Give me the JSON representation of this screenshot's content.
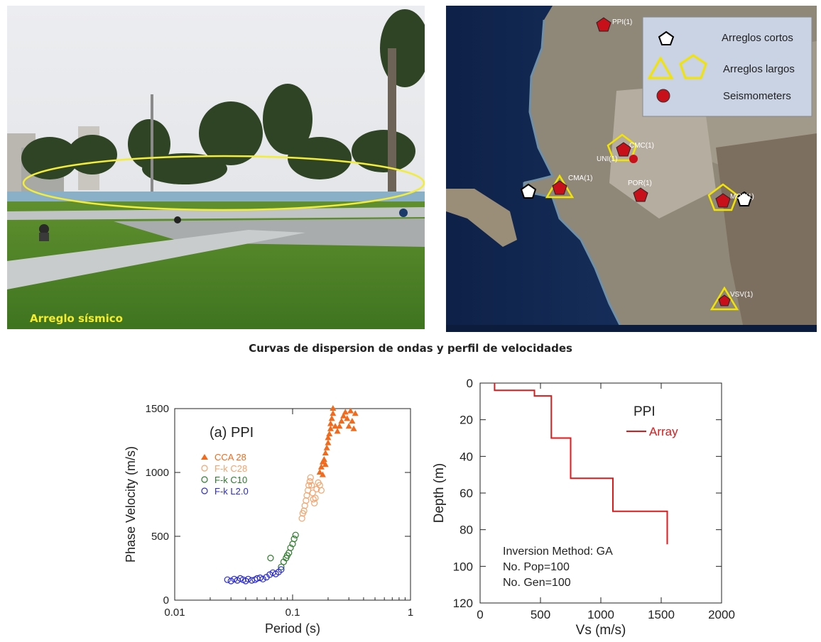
{
  "photo": {
    "caption": "Arreglo sísmico"
  },
  "map": {
    "legend": [
      {
        "label": "Arreglos cortos",
        "icon": "black-pentagon-icon"
      },
      {
        "label": "Arreglos largos",
        "icon": "yellow-triangle-pentagon-icon"
      },
      {
        "label": "Seismometers",
        "icon": "red-circle-icon"
      }
    ],
    "stations": [
      "PPI(1)",
      "CMC(1)",
      "UNI(1)",
      "CMA(1)",
      "POR(1)",
      "MOL(1)",
      "VSV(1)"
    ],
    "colors": {
      "long_array": "#f2e400",
      "seismometer": "#c8101a",
      "legend_bg": "#c9d3e4"
    }
  },
  "section_title": "Curvas de dispersion de ondas y perfil de velocidades",
  "chart_data": [
    {
      "type": "scatter",
      "title": "(a) PPI",
      "xlabel": "Period (s)",
      "ylabel": "Phase Velocity (m/s)",
      "xscale": "log",
      "xlim": [
        0.01,
        1
      ],
      "ylim": [
        0,
        1500
      ],
      "xticks": [
        {
          "v": 0.01,
          "label": "0.01"
        },
        {
          "v": 0.1,
          "label": "0.1"
        },
        {
          "v": 1,
          "label": "1"
        }
      ],
      "yticks": [
        {
          "v": 0,
          "label": "0"
        },
        {
          "v": 500,
          "label": "500"
        },
        {
          "v": 1000,
          "label": "1000"
        },
        {
          "v": 1500,
          "label": "1500"
        }
      ],
      "legend_position": "top-left",
      "series": [
        {
          "name": "CCA 28",
          "marker": "filled-triangle",
          "color": "#f26a1b",
          "points": [
            [
              0.17,
              1000
            ],
            [
              0.175,
              1040
            ],
            [
              0.18,
              980
            ],
            [
              0.18,
              1080
            ],
            [
              0.185,
              1100
            ],
            [
              0.19,
              1060
            ],
            [
              0.19,
              1150
            ],
            [
              0.195,
              1190
            ],
            [
              0.2,
              1230
            ],
            [
              0.2,
              1270
            ],
            [
              0.205,
              1300
            ],
            [
              0.21,
              1340
            ],
            [
              0.21,
              1380
            ],
            [
              0.215,
              1420
            ],
            [
              0.22,
              1460
            ],
            [
              0.22,
              1500
            ],
            [
              0.23,
              1360
            ],
            [
              0.24,
              1320
            ],
            [
              0.25,
              1360
            ],
            [
              0.26,
              1400
            ],
            [
              0.27,
              1440
            ],
            [
              0.28,
              1470
            ],
            [
              0.29,
              1420
            ],
            [
              0.3,
              1360
            ],
            [
              0.31,
              1480
            ],
            [
              0.32,
              1400
            ],
            [
              0.33,
              1340
            ],
            [
              0.34,
              1460
            ]
          ]
        },
        {
          "name": "F-k C28",
          "marker": "open-circle",
          "color": "#f5a36c",
          "points": [
            [
              0.12,
              640
            ],
            [
              0.122,
              680
            ],
            [
              0.125,
              700
            ],
            [
              0.127,
              740
            ],
            [
              0.13,
              780
            ],
            [
              0.132,
              820
            ],
            [
              0.135,
              860
            ],
            [
              0.137,
              900
            ],
            [
              0.14,
              930
            ],
            [
              0.142,
              960
            ],
            [
              0.145,
              900
            ],
            [
              0.148,
              840
            ],
            [
              0.15,
              790
            ],
            [
              0.153,
              760
            ],
            [
              0.156,
              800
            ],
            [
              0.16,
              870
            ],
            [
              0.165,
              920
            ],
            [
              0.17,
              900
            ],
            [
              0.175,
              860
            ]
          ]
        },
        {
          "name": "F-k C10",
          "marker": "open-circle",
          "color": "#2d7a2d",
          "points": [
            [
              0.065,
              330
            ],
            [
              0.08,
              260
            ],
            [
              0.084,
              300
            ],
            [
              0.088,
              330
            ],
            [
              0.09,
              350
            ],
            [
              0.093,
              370
            ],
            [
              0.096,
              410
            ],
            [
              0.1,
              440
            ],
            [
              0.103,
              480
            ],
            [
              0.106,
              510
            ]
          ]
        },
        {
          "name": "F-k L2.0",
          "marker": "open-circle",
          "color": "#2a2ad8",
          "points": [
            [
              0.028,
              160
            ],
            [
              0.03,
              150
            ],
            [
              0.032,
              165
            ],
            [
              0.034,
              155
            ],
            [
              0.036,
              170
            ],
            [
              0.038,
              160
            ],
            [
              0.04,
              150
            ],
            [
              0.042,
              165
            ],
            [
              0.045,
              155
            ],
            [
              0.048,
              160
            ],
            [
              0.05,
              170
            ],
            [
              0.053,
              175
            ],
            [
              0.056,
              165
            ],
            [
              0.06,
              180
            ],
            [
              0.064,
              200
            ],
            [
              0.068,
              215
            ],
            [
              0.072,
              205
            ],
            [
              0.076,
              220
            ],
            [
              0.08,
              240
            ]
          ]
        }
      ]
    },
    {
      "type": "line",
      "title": "PPI",
      "xlabel": "Vs (m/s)",
      "ylabel": "Depth (m)",
      "xlim": [
        0,
        2000
      ],
      "ylim": [
        0,
        120
      ],
      "y_inverted": true,
      "xticks": [
        {
          "v": 0,
          "label": "0"
        },
        {
          "v": 500,
          "label": "500"
        },
        {
          "v": 1000,
          "label": "1000"
        },
        {
          "v": 1500,
          "label": "1500"
        },
        {
          "v": 2000,
          "label": "2000"
        }
      ],
      "yticks": [
        {
          "v": 0,
          "label": "0"
        },
        {
          "v": 20,
          "label": "20"
        },
        {
          "v": 40,
          "label": "40"
        },
        {
          "v": 60,
          "label": "60"
        },
        {
          "v": 80,
          "label": "80"
        },
        {
          "v": 100,
          "label": "100"
        },
        {
          "v": 120,
          "label": "120"
        }
      ],
      "legend_position": "top-right",
      "annotation": [
        "Inversion Method: GA",
        "No. Pop=100",
        "No. Gen=100"
      ],
      "series": [
        {
          "name": "Array",
          "color": "#e0191b",
          "points": [
            [
              120,
              0
            ],
            [
              120,
              4
            ],
            [
              450,
              4
            ],
            [
              450,
              7
            ],
            [
              590,
              7
            ],
            [
              590,
              30
            ],
            [
              750,
              30
            ],
            [
              750,
              52
            ],
            [
              1100,
              52
            ],
            [
              1100,
              70
            ],
            [
              1550,
              70
            ],
            [
              1550,
              88
            ]
          ]
        }
      ]
    }
  ]
}
